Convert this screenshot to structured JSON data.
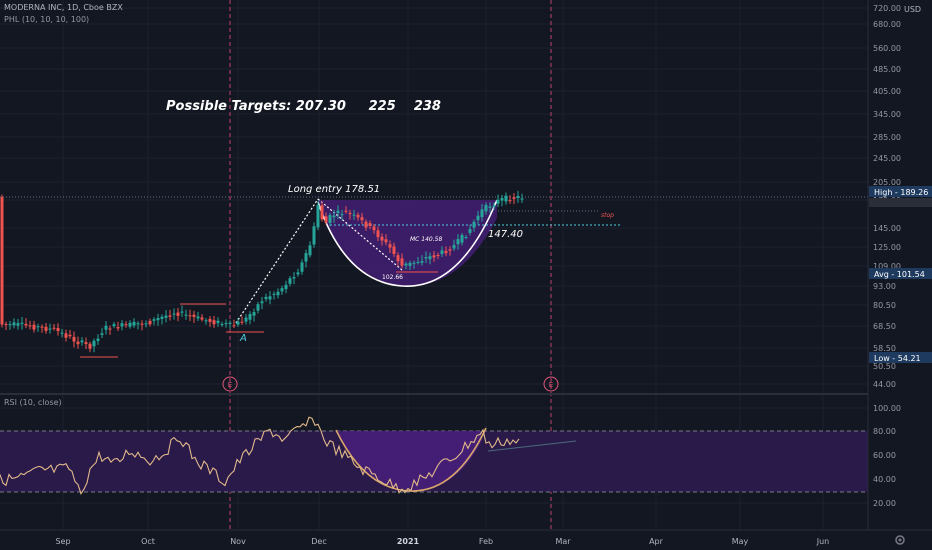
{
  "header": {
    "symbol_line": "MODERNA INC, 1D, Cboe BZX",
    "indicator_line": "PHL (10, 10, 10, 100)",
    "currency": "USD"
  },
  "rsi_panel": {
    "label": "RSI (10, close)"
  },
  "annotations": {
    "targets": "Possible Targets: 207.30     225    238",
    "long_entry": "Long entry 178.51",
    "mc_label": "MC 140.58",
    "low_label": "102.66",
    "level_147": "147.40",
    "stop": "stop",
    "point_a": "A",
    "earnings_1": "E",
    "earnings_2": "E"
  },
  "price_axis": {
    "ticks": [
      "720.00",
      "680.00",
      "560.00",
      "485.00",
      "405.00",
      "345.00",
      "285.00",
      "245.00",
      "205.00",
      "175.00",
      "145.00",
      "125.00",
      "109.00",
      "93.00",
      "80.50",
      "68.50",
      "58.50",
      "50.50",
      "44.00"
    ],
    "badges": [
      {
        "label": "High - 189.26",
        "value": 189.26
      },
      {
        "label": "Avg - 101.54",
        "value": 101.54
      },
      {
        "label": "Low - 54.21",
        "value": 54.21
      }
    ]
  },
  "rsi_axis": {
    "ticks": [
      "100.00",
      "80.00",
      "60.00",
      "40.00",
      "20.00"
    ]
  },
  "time_axis": {
    "labels": [
      "Sep",
      "Oct",
      "Nov",
      "Dec",
      "2021",
      "Feb",
      "Mar",
      "Apr",
      "May",
      "Jun"
    ]
  },
  "colors": {
    "background": "#131722",
    "up_candle": "#26a69a",
    "down_candle": "#ef5350",
    "cup_fill": "#4a1f7e",
    "rsi_band": "#2a1a4a",
    "rsi_line": "#e2b98a",
    "earnings": "#e0557a"
  },
  "chart_data": {
    "type": "candlestick",
    "price_scale": "log",
    "ylim": [
      44,
      720
    ],
    "rsi_range": [
      0,
      100
    ],
    "rsi_bands": [
      30,
      80
    ],
    "levels": {
      "high": 189.26,
      "avg": 101.54,
      "low": 54.21,
      "long_entry": 178.51,
      "mc": 140.58,
      "cup_low": 102.66,
      "resistance": 147.4
    },
    "targets": [
      207.3,
      225,
      238
    ]
  }
}
